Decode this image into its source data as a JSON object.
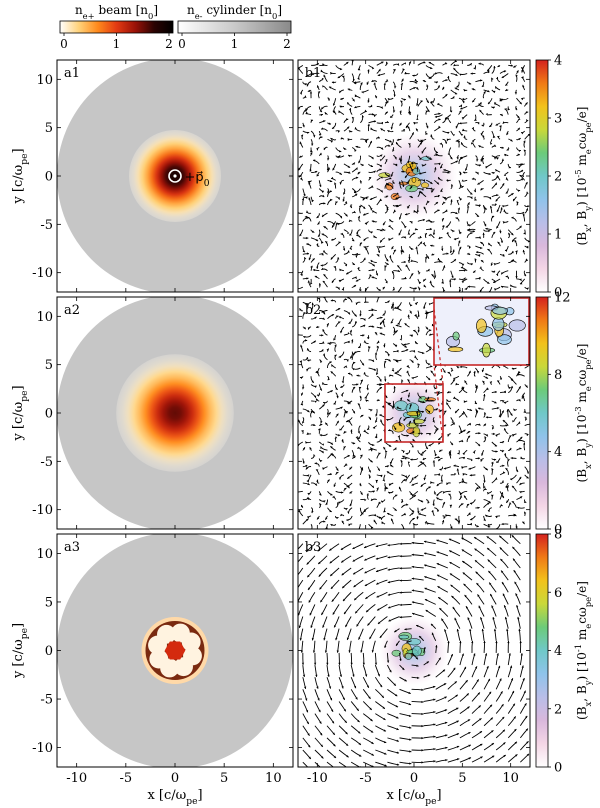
{
  "colorbars_top": [
    {
      "label_main": "n",
      "label_sub": "e+",
      "label_rest": " beam [n",
      "label_sub2": "0",
      "label_end": "]",
      "ticks": [
        "0",
        "1",
        "2"
      ],
      "stops": [
        "#ffffff",
        "#ffd27a",
        "#ff8a1c",
        "#e33a12",
        "#9a1208",
        "#2a0302",
        "#000000"
      ]
    },
    {
      "label_main": "n",
      "label_sub": "e-",
      "label_rest": " cylinder [n",
      "label_sub2": "0",
      "label_end": "]",
      "ticks": [
        "0",
        "1",
        "2"
      ],
      "stops": [
        "#ffffff",
        "#c9c9c9",
        "#8a8a8a"
      ]
    }
  ],
  "left_panels": [
    {
      "id": "a1",
      "annotation": "p",
      "annotation_sub": "0"
    },
    {
      "id": "a2"
    },
    {
      "id": "a3"
    }
  ],
  "right_panels": [
    {
      "id": "b1",
      "cb_ticks": [
        "0",
        "1",
        "2",
        "3",
        "4"
      ],
      "cb_label_prefix": "(B",
      "cb_label_sub1": "x",
      "cb_label_mid": ", B",
      "cb_label_sub2": "y",
      "cb_label_unit": ") [10",
      "cb_label_exp": "-5",
      "cb_label_end": " m",
      "cb_label_e": "e",
      "cb_label_c": "cω",
      "cb_label_pe": "pe",
      "cb_label_tail": "/e]"
    },
    {
      "id": "b2",
      "cb_ticks": [
        "0",
        "4",
        "8",
        "12"
      ],
      "cb_label_prefix": "(B",
      "cb_label_sub1": "x",
      "cb_label_mid": ", B",
      "cb_label_sub2": "y",
      "cb_label_unit": ") [10",
      "cb_label_exp": "-3",
      "cb_label_end": " m",
      "cb_label_e": "e",
      "cb_label_c": "cω",
      "cb_label_pe": "pe",
      "cb_label_tail": "/e]"
    },
    {
      "id": "b3",
      "cb_ticks": [
        "0",
        "2",
        "4",
        "6",
        "8"
      ],
      "cb_label_prefix": "(B",
      "cb_label_sub1": "x",
      "cb_label_mid": ", B",
      "cb_label_sub2": "y",
      "cb_label_unit": ") [10",
      "cb_label_exp": "-1",
      "cb_label_end": " m",
      "cb_label_e": "e",
      "cb_label_c": "cω",
      "cb_label_pe": "pe",
      "cb_label_tail": "/e]"
    }
  ],
  "field_colormap": [
    "#ffffff",
    "#f4d6e6",
    "#d9b8dc",
    "#b9bee8",
    "#8fc3ea",
    "#6fc8c8",
    "#6ccb7a",
    "#c9d83a",
    "#f2c21c",
    "#f07a16",
    "#d4221e"
  ],
  "chart_data": {
    "type": "heatmap",
    "xlabel": "x [c/ω_pe]",
    "ylabel": "y [c/ω_pe]",
    "xticks": [
      -10,
      -5,
      0,
      5,
      10
    ],
    "yticks": [
      -10,
      -5,
      0,
      5,
      10
    ],
    "xlim": [
      -12,
      12
    ],
    "ylim": [
      -12,
      12
    ],
    "cylinder_radius": 12,
    "panels": [
      {
        "id": "a1",
        "quantity": "n_e+ beam [n0], n_e- cylinder [n0]",
        "range": [
          0,
          2
        ],
        "beam_peak": 1.8,
        "beam_sigma": 1.8
      },
      {
        "id": "a2",
        "quantity": "n_e+ beam [n0], n_e- cylinder [n0]",
        "range": [
          0,
          2
        ],
        "beam_peak": 1.5,
        "beam_sigma": 2.3
      },
      {
        "id": "a3",
        "quantity": "n_e+ beam [n0], n_e- cylinder [n0]",
        "range": [
          0,
          2
        ],
        "beam_peak": 1.6,
        "ring_radius": 3.0
      },
      {
        "id": "b1",
        "quantity": "(Bx, By) [1e-5 me c ωpe / e]",
        "range": [
          0,
          4
        ],
        "structure": "turbulent"
      },
      {
        "id": "b2",
        "quantity": "(Bx, By) [1e-3 me c ωpe / e]",
        "range": [
          0,
          12
        ],
        "structure": "filamentary",
        "inset_box": [
          -3,
          3,
          -3,
          3
        ]
      },
      {
        "id": "b3",
        "quantity": "(Bx, By) [1e-1 me c ωpe / e]",
        "range": [
          0,
          8
        ],
        "structure": "azimuthal"
      }
    ]
  }
}
